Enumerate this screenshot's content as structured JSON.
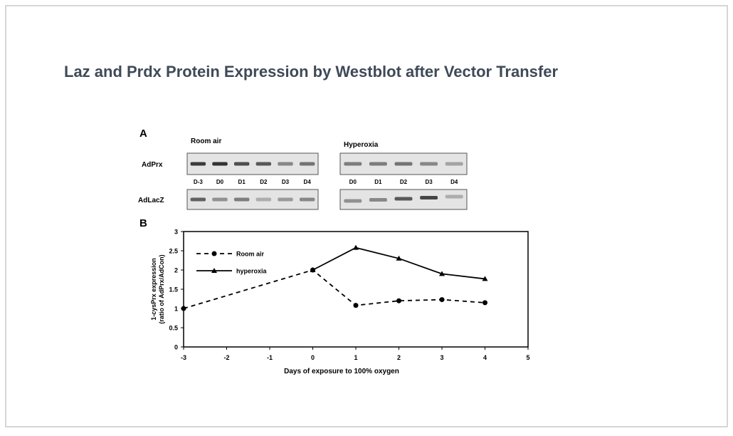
{
  "slide_title": "Laz and Prdx Protein Expression by Westblot  after Vector Transfer",
  "panel_a": {
    "label": "A",
    "rows": [
      "AdPrx",
      "AdLacZ"
    ],
    "groups": [
      {
        "name": "Room air",
        "lanes": [
          "D-3",
          "D0",
          "D1",
          "D2",
          "D3",
          "D4"
        ]
      },
      {
        "name": "Hyperoxia",
        "lanes": [
          "D0",
          "D1",
          "D2",
          "D3",
          "D4"
        ]
      }
    ]
  },
  "panel_b": {
    "label": "B"
  },
  "chart_data": {
    "type": "line",
    "x_label": "Days of exposure to 100% oxygen",
    "y_label": [
      "1-cysPrx expression",
      "(ratio of AdPrx/AdCon)"
    ],
    "series": [
      {
        "name": "Room air",
        "color": "#000000",
        "marker": "circle",
        "dashed": true,
        "x": [
          -3,
          0,
          1,
          2,
          3,
          4
        ],
        "values": [
          1,
          2,
          1.08,
          1.2,
          1.23,
          1.15
        ]
      },
      {
        "name": "hyperoxia",
        "color": "#000000",
        "marker": "triangle",
        "dashed": false,
        "x": [
          0,
          1,
          2,
          3,
          4
        ],
        "values": [
          2,
          2.58,
          2.3,
          1.9,
          1.77
        ]
      }
    ],
    "xlim": [
      -3,
      5
    ],
    "xticks": [
      -3,
      -2,
      -1,
      0,
      1,
      2,
      3,
      4,
      5
    ],
    "ylim": [
      0,
      3
    ],
    "yticks": [
      0,
      0.5,
      1,
      1.5,
      2,
      2.5,
      3
    ],
    "legend": "upper left",
    "grid": false
  }
}
